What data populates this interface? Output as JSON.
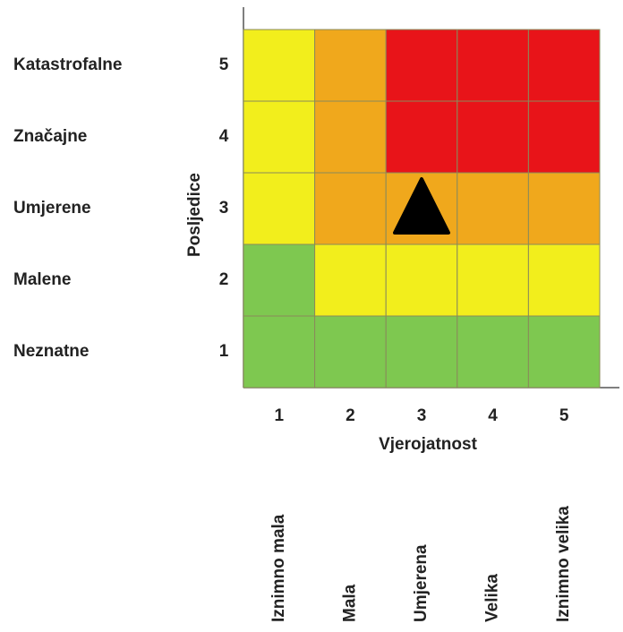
{
  "y_axis": {
    "title": "Posljedice",
    "levels": [
      {
        "number": "1",
        "label": "Neznatne"
      },
      {
        "number": "2",
        "label": "Malene"
      },
      {
        "number": "3",
        "label": "Umjerene"
      },
      {
        "number": "4",
        "label": "Značajne"
      },
      {
        "number": "5",
        "label": "Katastrofalne"
      }
    ]
  },
  "x_axis": {
    "title": "Vjerojatnost",
    "levels": [
      {
        "number": "1",
        "label": "Iznimno mala"
      },
      {
        "number": "2",
        "label": "Mala"
      },
      {
        "number": "3",
        "label": "Umjerena"
      },
      {
        "number": "4",
        "label": "Velika"
      },
      {
        "number": "5",
        "label": "Iznimno velika"
      }
    ]
  },
  "matrix": {
    "rows": [
      [
        "#7ec850",
        "#7ec850",
        "#7ec850",
        "#7ec850",
        "#7ec850"
      ],
      [
        "#7ec850",
        "#f2ee1c",
        "#f2ee1c",
        "#f2ee1c",
        "#f2ee1c"
      ],
      [
        "#f2ee1c",
        "#f0a81c",
        "#f0a81c",
        "#f0a81c",
        "#f0a81c"
      ],
      [
        "#f2ee1c",
        "#f0a81c",
        "#e81419",
        "#e81419",
        "#e81419"
      ],
      [
        "#f2ee1c",
        "#f0a81c",
        "#e81419",
        "#e81419",
        "#e81419"
      ]
    ]
  },
  "marker": {
    "likelihood": 3,
    "consequence": 3
  }
}
